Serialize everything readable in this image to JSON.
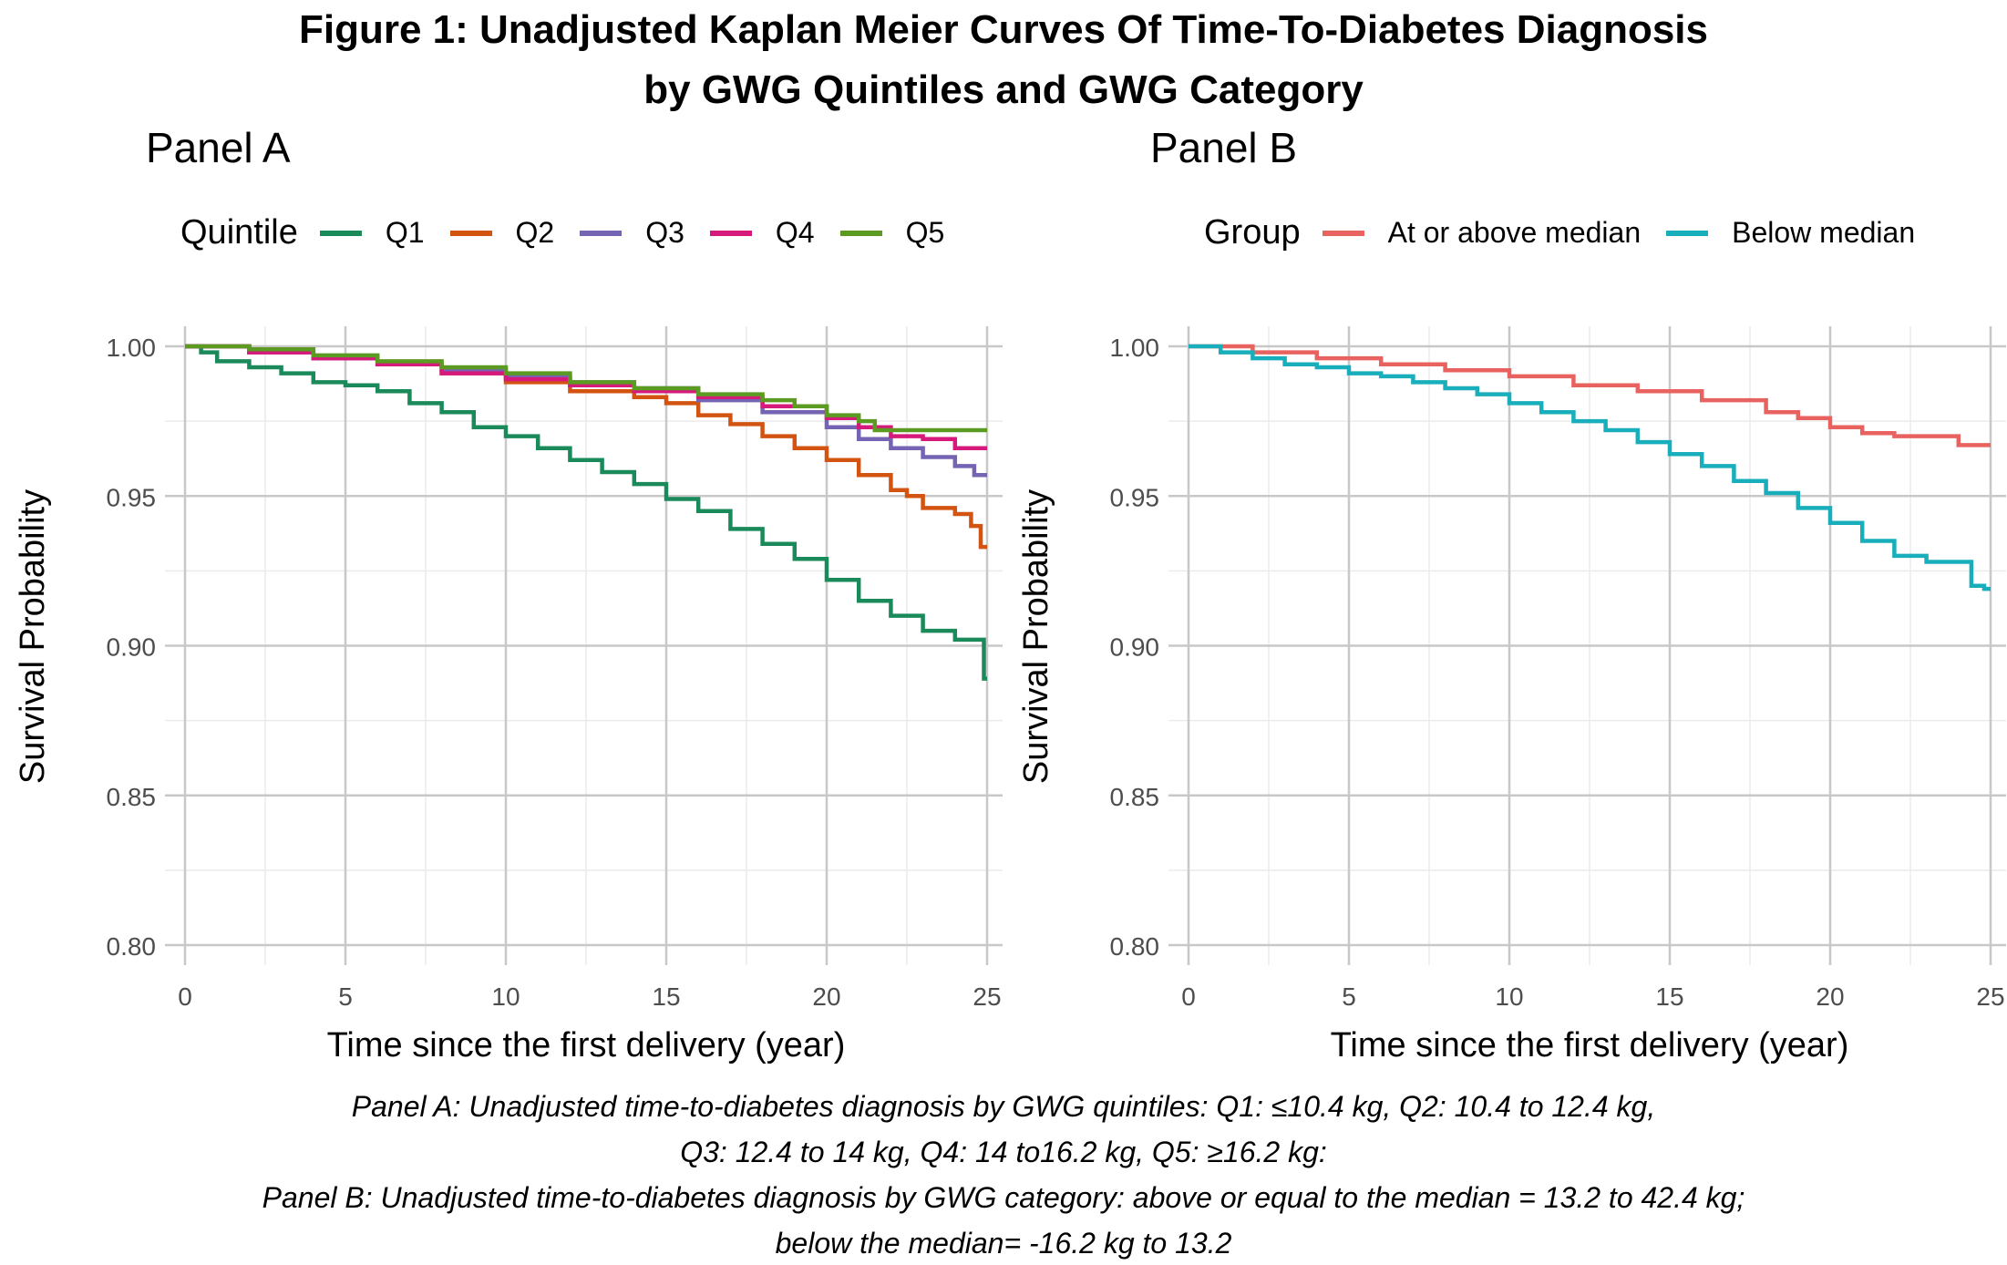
{
  "title_line1": "Figure 1: Unadjusted Kaplan Meier Curves Of Time-To-Diabetes Diagnosis",
  "title_line2": "by GWG Quintiles and GWG Category",
  "caption": [
    "Panel A: Unadjusted time-to-diabetes diagnosis by GWG quintiles: Q1: ≤10.4 kg, Q2: 10.4 to 12.4 kg,",
    "Q3: 12.4 to 14 kg, Q4: 14 to16.2 kg, Q5: ≥16.2 kg:",
    "Panel B: Unadjusted time-to-diabetes diagnosis by GWG category: above or equal to the median = 13.2 to 42.4 kg;",
    "below the median= -16.2 kg to 13.2"
  ],
  "chart_data": [
    {
      "type": "line",
      "step": true,
      "panel_title": "Panel A",
      "legend_title": "Quintile",
      "legend_position": "top",
      "xlabel": "Time since the first delivery (year)",
      "ylabel": "Survival Probability",
      "xlim": [
        0,
        25
      ],
      "ylim": [
        0.8,
        1.0
      ],
      "xticks": [
        0,
        5,
        10,
        15,
        20,
        25
      ],
      "yticks": [
        0.8,
        0.85,
        0.9,
        0.95,
        1.0
      ],
      "xtick_labels": [
        "0",
        "5",
        "10",
        "15",
        "20",
        "25"
      ],
      "ytick_labels": [
        "0.80",
        "0.85",
        "0.90",
        "0.95",
        "1.00"
      ],
      "grid": true,
      "series": [
        {
          "name": "Q1",
          "color": "#1b8a5a",
          "x": [
            0,
            0.5,
            1,
            2,
            3,
            4,
            5,
            6,
            7,
            8,
            9,
            10,
            11,
            12,
            13,
            14,
            15,
            16,
            17,
            18,
            19,
            20,
            21,
            22,
            23,
            24,
            24.6,
            24.9,
            25
          ],
          "y": [
            1.0,
            0.998,
            0.995,
            0.993,
            0.991,
            0.988,
            0.987,
            0.985,
            0.981,
            0.978,
            0.973,
            0.97,
            0.966,
            0.962,
            0.958,
            0.954,
            0.949,
            0.945,
            0.939,
            0.934,
            0.929,
            0.922,
            0.915,
            0.91,
            0.905,
            0.902,
            0.902,
            0.889,
            0.889
          ]
        },
        {
          "name": "Q2",
          "color": "#d35410",
          "x": [
            0,
            2,
            4,
            6,
            8,
            10,
            12,
            14,
            15,
            16,
            17,
            18,
            19,
            20,
            21,
            22,
            22.5,
            23,
            23.5,
            24,
            24.5,
            24.8,
            25
          ],
          "y": [
            1.0,
            0.998,
            0.996,
            0.994,
            0.991,
            0.988,
            0.985,
            0.983,
            0.981,
            0.977,
            0.974,
            0.97,
            0.966,
            0.962,
            0.957,
            0.952,
            0.95,
            0.946,
            0.946,
            0.944,
            0.94,
            0.933,
            0.933
          ]
        },
        {
          "name": "Q3",
          "color": "#7563b4",
          "x": [
            0,
            2,
            4,
            6,
            8,
            10,
            12,
            14,
            16,
            18,
            20,
            21,
            22,
            23,
            24,
            24.6,
            25
          ],
          "y": [
            1.0,
            0.998,
            0.996,
            0.994,
            0.992,
            0.99,
            0.988,
            0.986,
            0.982,
            0.978,
            0.973,
            0.969,
            0.966,
            0.963,
            0.96,
            0.957,
            0.957
          ]
        },
        {
          "name": "Q4",
          "color": "#d61a7b",
          "x": [
            0,
            2,
            4,
            6,
            8,
            10,
            12,
            14,
            16,
            18,
            20,
            21,
            22,
            23,
            24,
            25
          ],
          "y": [
            1.0,
            0.998,
            0.996,
            0.994,
            0.991,
            0.989,
            0.987,
            0.985,
            0.983,
            0.98,
            0.976,
            0.973,
            0.97,
            0.969,
            0.966,
            0.966
          ]
        },
        {
          "name": "Q5",
          "color": "#5b9b22",
          "x": [
            0,
            2,
            4,
            6,
            8,
            10,
            12,
            14,
            16,
            18,
            19,
            20,
            21,
            21.5,
            22,
            25
          ],
          "y": [
            1.0,
            0.999,
            0.997,
            0.995,
            0.993,
            0.991,
            0.988,
            0.986,
            0.984,
            0.982,
            0.98,
            0.977,
            0.975,
            0.972,
            0.972,
            0.972
          ]
        }
      ]
    },
    {
      "type": "line",
      "step": true,
      "panel_title": "Panel B",
      "legend_title": "Group",
      "legend_position": "top",
      "xlabel": "Time since the first delivery (year)",
      "ylabel": "Survival Probability",
      "xlim": [
        0,
        25
      ],
      "ylim": [
        0.8,
        1.0
      ],
      "xticks": [
        0,
        5,
        10,
        15,
        20,
        25
      ],
      "yticks": [
        0.8,
        0.85,
        0.9,
        0.95,
        1.0
      ],
      "xtick_labels": [
        "0",
        "5",
        "10",
        "15",
        "20",
        "25"
      ],
      "ytick_labels": [
        "0.80",
        "0.85",
        "0.90",
        "0.95",
        "1.00"
      ],
      "grid": true,
      "series": [
        {
          "name": "At or above median",
          "color": "#e8625f",
          "x": [
            0,
            2,
            4,
            6,
            8,
            10,
            12,
            14,
            16,
            18,
            19,
            20,
            21,
            22,
            23,
            24,
            25
          ],
          "y": [
            1.0,
            0.998,
            0.996,
            0.994,
            0.992,
            0.99,
            0.987,
            0.985,
            0.982,
            0.978,
            0.976,
            0.973,
            0.971,
            0.97,
            0.97,
            0.967,
            0.967
          ]
        },
        {
          "name": "Below median",
          "color": "#19aebc",
          "x": [
            0,
            1,
            2,
            3,
            4,
            5,
            6,
            7,
            8,
            9,
            10,
            11,
            12,
            13,
            14,
            15,
            16,
            17,
            18,
            19,
            20,
            21,
            22,
            23,
            24,
            24.4,
            24.8,
            25
          ],
          "y": [
            1.0,
            0.998,
            0.996,
            0.994,
            0.993,
            0.991,
            0.99,
            0.988,
            0.986,
            0.984,
            0.981,
            0.978,
            0.975,
            0.972,
            0.968,
            0.964,
            0.96,
            0.955,
            0.951,
            0.946,
            0.941,
            0.935,
            0.93,
            0.928,
            0.928,
            0.92,
            0.919,
            0.919
          ]
        }
      ]
    }
  ]
}
